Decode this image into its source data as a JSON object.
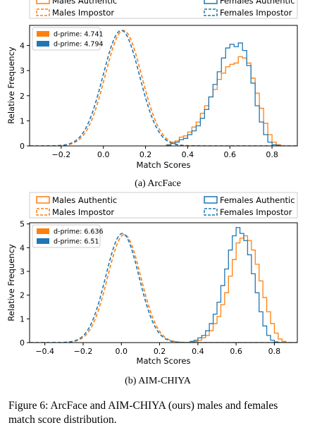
{
  "figure": {
    "caption": "Figure 6: ArcFace and AIM-CHIYA (ours) males and females match score distribution."
  },
  "colors": {
    "male": "#ff7f0e",
    "female": "#1f77b4"
  },
  "chart_data": [
    {
      "type": "area",
      "subcaption": "(a) ArcFace",
      "xlabel": "Match Scores",
      "ylabel": "Relative Frequency",
      "xlim": [
        -0.35,
        0.92
      ],
      "ylim": [
        0,
        4.8
      ],
      "xticks": [
        -0.2,
        0.0,
        0.2,
        0.4,
        0.6,
        0.8
      ],
      "xtick_labels": [
        "−0.2",
        "0.0",
        "0.2",
        "0.4",
        "0.6",
        "0.8"
      ],
      "yticks": [
        0,
        1,
        2,
        3,
        4
      ],
      "legend": {
        "placement": "top",
        "entries": [
          "Males Authentic",
          "Males Impostor",
          "Females Authentic",
          "Females Impostor"
        ]
      },
      "inset_legend": {
        "placement": "top-left",
        "entries": [
          {
            "label": "d-prime: 4.741",
            "color": "#ff7f0e"
          },
          {
            "label": "d-prime: 4.794",
            "color": "#1f77b4"
          }
        ]
      },
      "series": [
        {
          "name": "Males Impostor",
          "style": "dashed",
          "color": "#ff7f0e",
          "distribution": "normal",
          "mean": 0.095,
          "std": 0.087,
          "peak": 4.6
        },
        {
          "name": "Females Impostor",
          "style": "dashed",
          "color": "#1f77b4",
          "distribution": "normal",
          "mean": 0.085,
          "std": 0.087,
          "peak": 4.6
        },
        {
          "name": "Males Authentic",
          "style": "step",
          "color": "#ff7f0e",
          "x": [
            0.3,
            0.32,
            0.34,
            0.36,
            0.38,
            0.4,
            0.42,
            0.44,
            0.46,
            0.48,
            0.5,
            0.52,
            0.54,
            0.56,
            0.58,
            0.6,
            0.62,
            0.64,
            0.66,
            0.68,
            0.7,
            0.72,
            0.74,
            0.76,
            0.78,
            0.8,
            0.82
          ],
          "values": [
            0.05,
            0.15,
            0.2,
            0.35,
            0.4,
            0.55,
            0.75,
            0.95,
            1.3,
            1.6,
            1.95,
            2.25,
            2.65,
            2.9,
            3.15,
            3.25,
            3.3,
            3.55,
            3.5,
            3.3,
            2.7,
            2.1,
            1.5,
            0.9,
            0.45,
            0.15,
            0.05
          ]
        },
        {
          "name": "Females Authentic",
          "style": "step",
          "color": "#1f77b4",
          "x": [
            0.3,
            0.32,
            0.34,
            0.36,
            0.38,
            0.4,
            0.42,
            0.44,
            0.46,
            0.48,
            0.5,
            0.52,
            0.54,
            0.56,
            0.58,
            0.6,
            0.62,
            0.64,
            0.66,
            0.68,
            0.7,
            0.72,
            0.74,
            0.76,
            0.78,
            0.8,
            0.82
          ],
          "values": [
            0.03,
            0.1,
            0.15,
            0.25,
            0.3,
            0.45,
            0.6,
            0.8,
            1.1,
            1.45,
            1.95,
            2.45,
            2.95,
            3.5,
            3.9,
            4.05,
            3.95,
            4.1,
            3.8,
            3.2,
            2.5,
            1.6,
            0.95,
            0.45,
            0.15,
            0.05,
            0.02
          ]
        }
      ]
    },
    {
      "type": "area",
      "subcaption": "(b) AIM-CHIYA",
      "xlabel": "Match Scores",
      "ylabel": "Relative Frequency",
      "xlim": [
        -0.48,
        0.92
      ],
      "ylim": [
        0,
        5.05
      ],
      "xticks": [
        -0.4,
        -0.2,
        0.0,
        0.2,
        0.4,
        0.6,
        0.8
      ],
      "xtick_labels": [
        "−0.4",
        "−0.2",
        "0.0",
        "0.2",
        "0.4",
        "0.6",
        "0.8"
      ],
      "yticks": [
        0,
        1,
        2,
        3,
        4,
        5
      ],
      "legend": {
        "placement": "top",
        "entries": [
          "Males Authentic",
          "Males Impostor",
          "Females Authentic",
          "Females Impostor"
        ]
      },
      "inset_legend": {
        "placement": "top-left",
        "entries": [
          {
            "label": "d-prime: 6.636",
            "color": "#ff7f0e"
          },
          {
            "label": "d-prime: 6.51",
            "color": "#1f77b4"
          }
        ]
      },
      "series": [
        {
          "name": "Males Impostor",
          "style": "dashed",
          "color": "#ff7f0e",
          "distribution": "normal",
          "mean": 0.015,
          "std": 0.087,
          "peak": 4.55
        },
        {
          "name": "Females Impostor",
          "style": "dashed",
          "color": "#1f77b4",
          "distribution": "normal",
          "mean": 0.005,
          "std": 0.087,
          "peak": 4.6
        },
        {
          "name": "Males Authentic",
          "style": "step",
          "color": "#ff7f0e",
          "x": [
            0.38,
            0.4,
            0.42,
            0.44,
            0.46,
            0.48,
            0.5,
            0.52,
            0.54,
            0.56,
            0.58,
            0.6,
            0.62,
            0.64,
            0.66,
            0.68,
            0.7,
            0.72,
            0.74,
            0.76,
            0.78,
            0.8,
            0.82,
            0.84
          ],
          "values": [
            0.05,
            0.1,
            0.2,
            0.3,
            0.5,
            0.8,
            1.1,
            1.6,
            2.1,
            2.8,
            3.5,
            4.2,
            4.4,
            4.5,
            4.3,
            3.9,
            3.3,
            2.6,
            1.9,
            1.3,
            0.8,
            0.4,
            0.15,
            0.05
          ]
        },
        {
          "name": "Females Authentic",
          "style": "step",
          "color": "#1f77b4",
          "x": [
            0.36,
            0.38,
            0.4,
            0.42,
            0.44,
            0.46,
            0.48,
            0.5,
            0.52,
            0.54,
            0.56,
            0.58,
            0.6,
            0.62,
            0.64,
            0.66,
            0.68,
            0.7,
            0.72,
            0.74,
            0.76,
            0.78,
            0.8
          ],
          "values": [
            0.05,
            0.1,
            0.2,
            0.3,
            0.5,
            0.8,
            1.2,
            1.7,
            2.4,
            3.1,
            3.9,
            4.5,
            4.85,
            4.6,
            4.3,
            3.7,
            2.9,
            2.1,
            1.3,
            0.7,
            0.3,
            0.1,
            0.03
          ]
        }
      ]
    }
  ]
}
